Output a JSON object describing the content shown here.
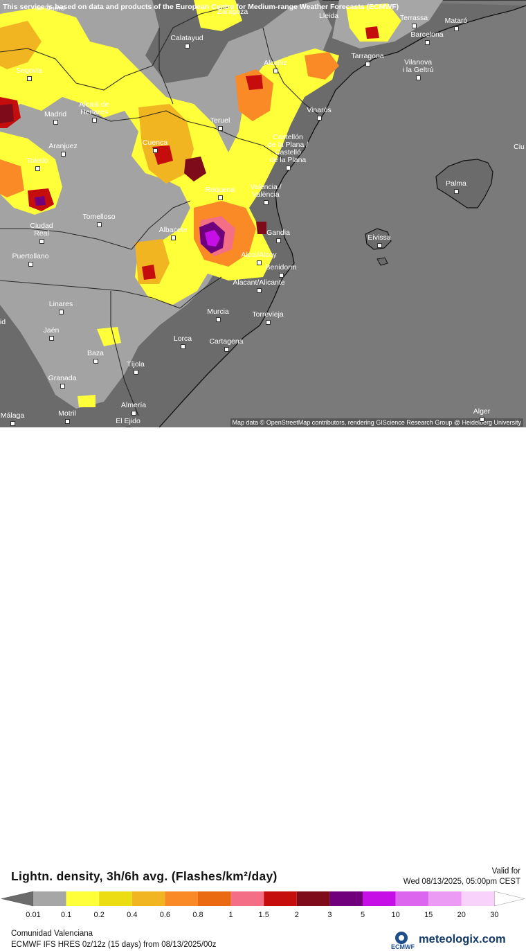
{
  "banner": "This service is based on data and products of the European Centre for Medium-range Weather Forecasts (ECMWF)",
  "map_credit": "Map data © OpenStreetMap contributors, rendering GIScience Research Group @ Heidelberg University",
  "cities": [
    {
      "name": "de Duero",
      "dot": false
    },
    {
      "name": "Zaragoza",
      "dot": false
    },
    {
      "name": "Lleida",
      "dot": false
    },
    {
      "name": "Terrassa",
      "dot": true
    },
    {
      "name": "Mataró",
      "dot": true
    },
    {
      "name": "Barcelona",
      "dot": true
    },
    {
      "name": "Calatayud",
      "dot": true
    },
    {
      "name": "Tarragona",
      "dot": true
    },
    {
      "name": "Vilanova\ni la Geltrú",
      "dot": true
    },
    {
      "name": "Segovia",
      "dot": true
    },
    {
      "name": "Alcañiz",
      "dot": true
    },
    {
      "name": "Alcalá de\nHenares",
      "dot": true
    },
    {
      "name": "Madrid",
      "dot": true
    },
    {
      "name": "Vinaròs",
      "dot": true
    },
    {
      "name": "Teruel",
      "dot": true
    },
    {
      "name": "Castellón\nde la Plana /\nCastelló\nde la Plana",
      "dot": true
    },
    {
      "name": "Cuenca",
      "dot": true
    },
    {
      "name": "Aranjuez",
      "dot": true
    },
    {
      "name": "Toledo",
      "dot": true
    },
    {
      "name": "Ciu",
      "dot": false
    },
    {
      "name": "Valencia /\nValència",
      "dot": true
    },
    {
      "name": "Requena",
      "dot": true
    },
    {
      "name": "Palma",
      "dot": true
    },
    {
      "name": "Ciudad\nReal",
      "dot": true
    },
    {
      "name": "Tomelloso",
      "dot": true
    },
    {
      "name": "Albacete",
      "dot": true
    },
    {
      "name": "Gandia",
      "dot": true
    },
    {
      "name": "Eivissa",
      "dot": true
    },
    {
      "name": "Puertollano",
      "dot": true
    },
    {
      "name": "Alcoi/Alcoy",
      "dot": true
    },
    {
      "name": "Benidorm",
      "dot": true
    },
    {
      "name": "Alacant/Alicante",
      "dot": true
    },
    {
      "name": "Linares",
      "dot": true
    },
    {
      "name": "Murcia",
      "dot": true
    },
    {
      "name": "Torrevieja",
      "dot": true
    },
    {
      "name": "Jaén",
      "dot": true
    },
    {
      "name": "Lorca",
      "dot": true
    },
    {
      "name": "Cartagena",
      "dot": true
    },
    {
      "name": "Baza",
      "dot": true
    },
    {
      "name": "Tíjola",
      "dot": true
    },
    {
      "name": "Granada",
      "dot": true
    },
    {
      "name": "Almería",
      "dot": true
    },
    {
      "name": "Motril",
      "dot": true
    },
    {
      "name": "El Ejido",
      "dot": true
    },
    {
      "name": "Málaga",
      "dot": true
    },
    {
      "name": "Alger",
      "dot": true
    },
    {
      "name": "id",
      "dot": false
    }
  ],
  "legend": {
    "title": "Lightn. density, 3h/6h avg. (Flashes/km²/day)",
    "valid_label": "Valid for",
    "valid_date": "Wed 08/13/2025, 05:00pm CEST",
    "ticks": [
      "0.01",
      "0.1",
      "0.2",
      "0.4",
      "0.6",
      "0.8",
      "1",
      "1.5",
      "2",
      "3",
      "5",
      "10",
      "15",
      "20",
      "30"
    ],
    "colors": [
      "#a6a6a6",
      "#ffff3a",
      "#ecdc12",
      "#f2b522",
      "#f98a25",
      "#e96a10",
      "#f46e86",
      "#c60d0d",
      "#7d0b1a",
      "#71007d",
      "#c50fe6",
      "#dd66ee",
      "#ec9bf5",
      "#f9d2fb"
    ],
    "end_colors": {
      "low": "#6b6b6b",
      "high": "#ffffff"
    }
  },
  "region": "Comunidad Valenciana",
  "model_info": "ECMWF IFS HRES 0z/12z (15 days) from 08/13/2025/00z",
  "logos": {
    "ecmwf": "ECMWF",
    "meteologix": "meteologix.com"
  }
}
